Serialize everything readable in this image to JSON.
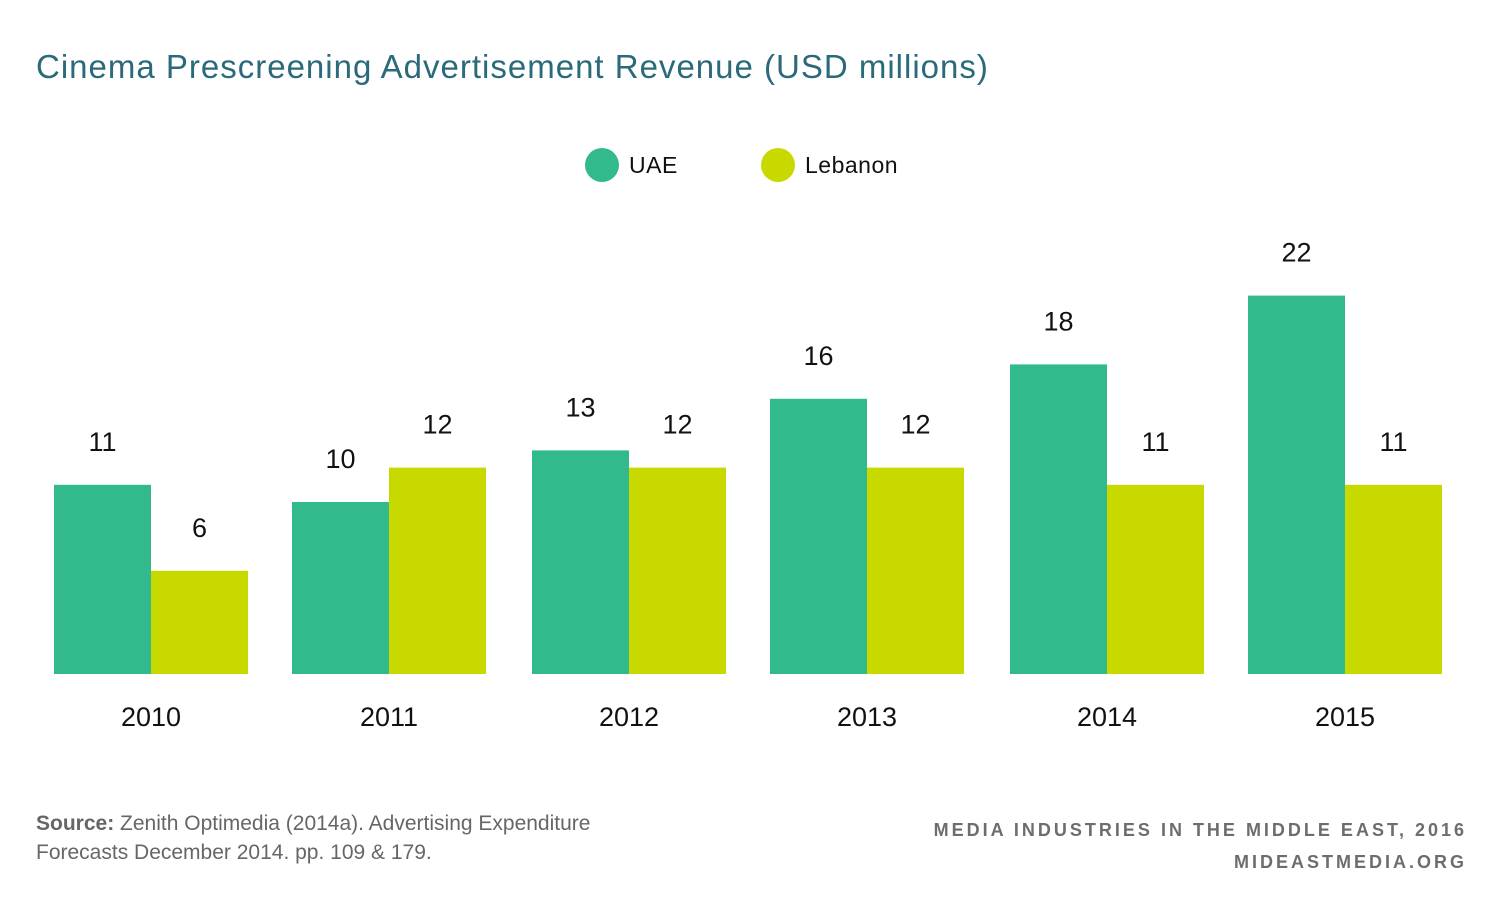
{
  "chart_data": {
    "type": "bar",
    "title": "Cinema Prescreening Advertisement Revenue (USD millions)",
    "categories": [
      "2010",
      "2011",
      "2012",
      "2013",
      "2014",
      "2015"
    ],
    "series": [
      {
        "name": "UAE",
        "values": [
          11,
          10,
          13,
          16,
          18,
          22
        ],
        "color": "#33ba8c"
      },
      {
        "name": "Lebanon",
        "values": [
          6,
          12,
          12,
          12,
          11,
          11
        ],
        "color": "#c8d900"
      }
    ],
    "ylim": [
      0,
      22
    ],
    "grid": false,
    "legend_position": "top-center",
    "data_labels": true
  },
  "source": {
    "label": "Source:",
    "text": "Zenith Optimedia (2014a). Advertising Expenditure Forecasts December 2014. pp. 109 & 179."
  },
  "credit": {
    "line1": "MEDIA INDUSTRIES IN THE MIDDLE EAST, 2016",
    "line2": "MIDEASTMEDIA.ORG"
  },
  "colors": {
    "title": "#2a6a7a",
    "text": "#111111",
    "footer": "#6d6d6d"
  }
}
